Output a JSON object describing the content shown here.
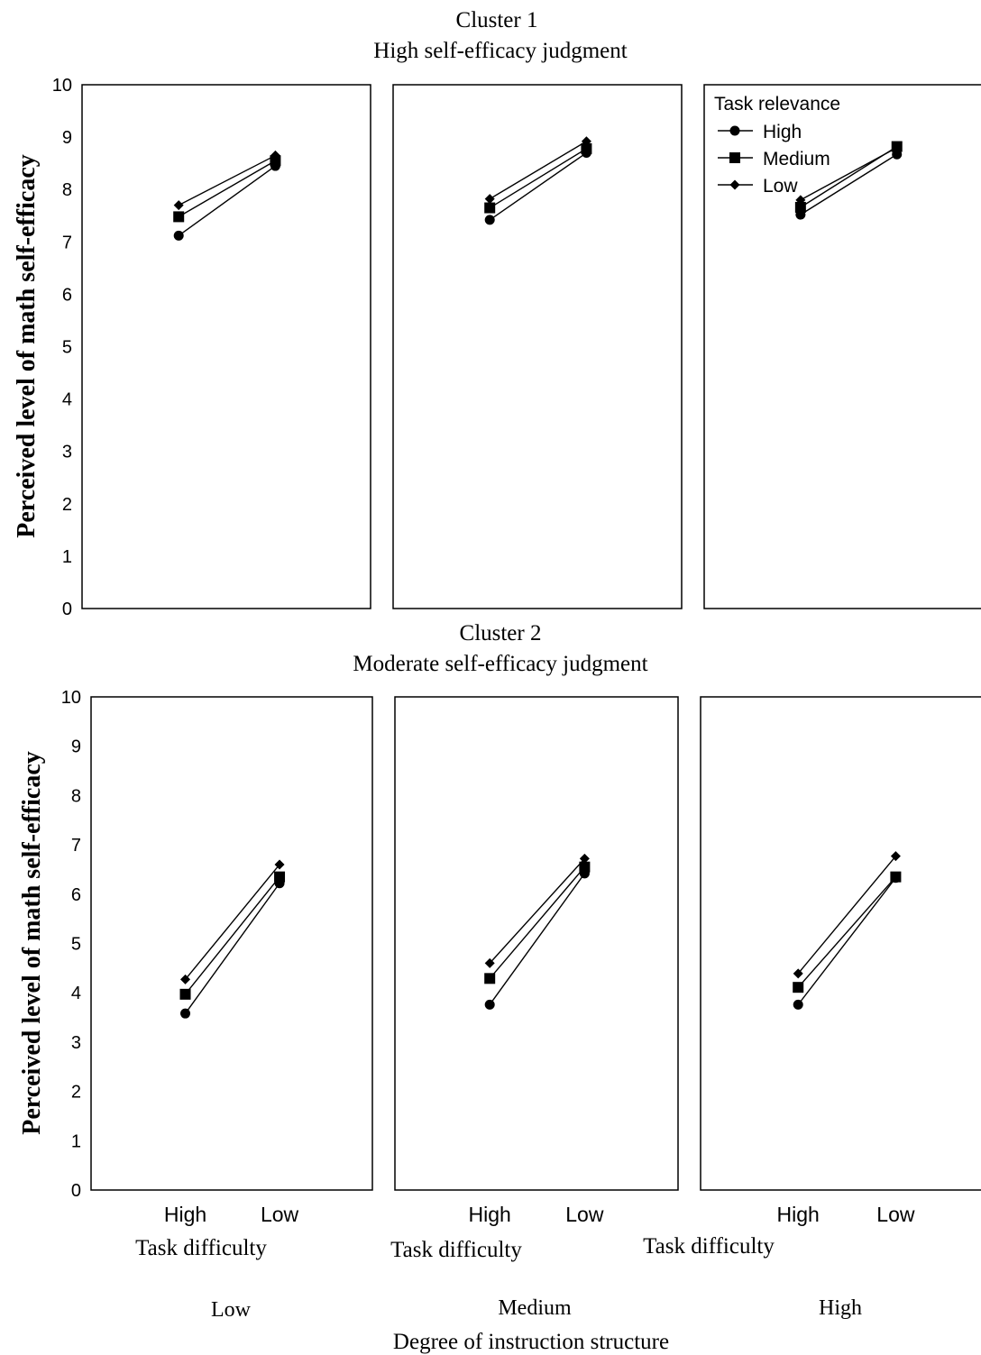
{
  "figure": {
    "x_caption_label": "Degree of instruction structure",
    "structure_levels": [
      "Low",
      "Medium",
      "High"
    ],
    "difficulty_caption": "Task difficulty",
    "difficulty_levels": [
      "High",
      "Low"
    ]
  },
  "colors": {
    "ink": "#000000",
    "background": "#ffffff"
  },
  "chart_data": [
    {
      "type": "line",
      "title": "Cluster 1",
      "subtitle": "High self-efficacy judgment",
      "ylabel": "Perceived level of math self-efficacy",
      "ylim": [
        0,
        10
      ],
      "yticks": [
        "0",
        "1",
        "2",
        "3",
        "4",
        "5",
        "6",
        "7",
        "8",
        "9",
        "10"
      ],
      "legend": {
        "title": "Task relevance",
        "placement": "top-left of third panel",
        "entries": [
          "High",
          "Medium",
          "Low"
        ]
      },
      "panels": [
        {
          "structure": "Low",
          "x": [
            "High",
            "Low"
          ],
          "series": [
            {
              "name": "High",
              "marker": "circle",
              "values": [
                7.12,
                8.45
              ]
            },
            {
              "name": "Medium",
              "marker": "square",
              "values": [
                7.48,
                8.55
              ]
            },
            {
              "name": "Low",
              "marker": "diamond",
              "values": [
                7.7,
                8.65
              ]
            }
          ]
        },
        {
          "structure": "Medium",
          "x": [
            "High",
            "Low"
          ],
          "series": [
            {
              "name": "High",
              "marker": "circle",
              "values": [
                7.42,
                8.7
              ]
            },
            {
              "name": "Medium",
              "marker": "square",
              "values": [
                7.65,
                8.78
              ]
            },
            {
              "name": "Low",
              "marker": "diamond",
              "values": [
                7.82,
                8.92
              ]
            }
          ]
        },
        {
          "structure": "High",
          "x": [
            "High",
            "Low"
          ],
          "series": [
            {
              "name": "High",
              "marker": "circle",
              "values": [
                7.52,
                8.67
              ]
            },
            {
              "name": "Medium",
              "marker": "square",
              "values": [
                7.66,
                8.82
              ]
            },
            {
              "name": "Low",
              "marker": "diamond",
              "values": [
                7.8,
                8.8
              ]
            }
          ]
        }
      ]
    },
    {
      "type": "line",
      "title": "Cluster 2",
      "subtitle": "Moderate self-efficacy judgment",
      "ylabel": "Perceived level of math self-efficacy",
      "ylim": [
        0,
        10
      ],
      "yticks": [
        "0",
        "1",
        "2",
        "3",
        "4",
        "5",
        "6",
        "7",
        "8",
        "9",
        "10"
      ],
      "panels": [
        {
          "structure": "Low",
          "x": [
            "High",
            "Low"
          ],
          "series": [
            {
              "name": "High",
              "marker": "circle",
              "values": [
                3.58,
                6.22
              ]
            },
            {
              "name": "Medium",
              "marker": "square",
              "values": [
                3.97,
                6.35
              ]
            },
            {
              "name": "Low",
              "marker": "diamond",
              "values": [
                4.27,
                6.6
              ]
            }
          ]
        },
        {
          "structure": "Medium",
          "x": [
            "High",
            "Low"
          ],
          "series": [
            {
              "name": "High",
              "marker": "circle",
              "values": [
                3.76,
                6.42
              ]
            },
            {
              "name": "Medium",
              "marker": "square",
              "values": [
                4.29,
                6.55
              ]
            },
            {
              "name": "Low",
              "marker": "diamond",
              "values": [
                4.6,
                6.72
              ]
            }
          ]
        },
        {
          "structure": "High",
          "x": [
            "High",
            "Low"
          ],
          "series": [
            {
              "name": "High",
              "marker": "circle",
              "values": [
                3.76,
                6.33
              ]
            },
            {
              "name": "Medium",
              "marker": "square",
              "values": [
                4.11,
                6.35
              ]
            },
            {
              "name": "Low",
              "marker": "diamond",
              "values": [
                4.39,
                6.77
              ]
            }
          ]
        }
      ]
    }
  ]
}
